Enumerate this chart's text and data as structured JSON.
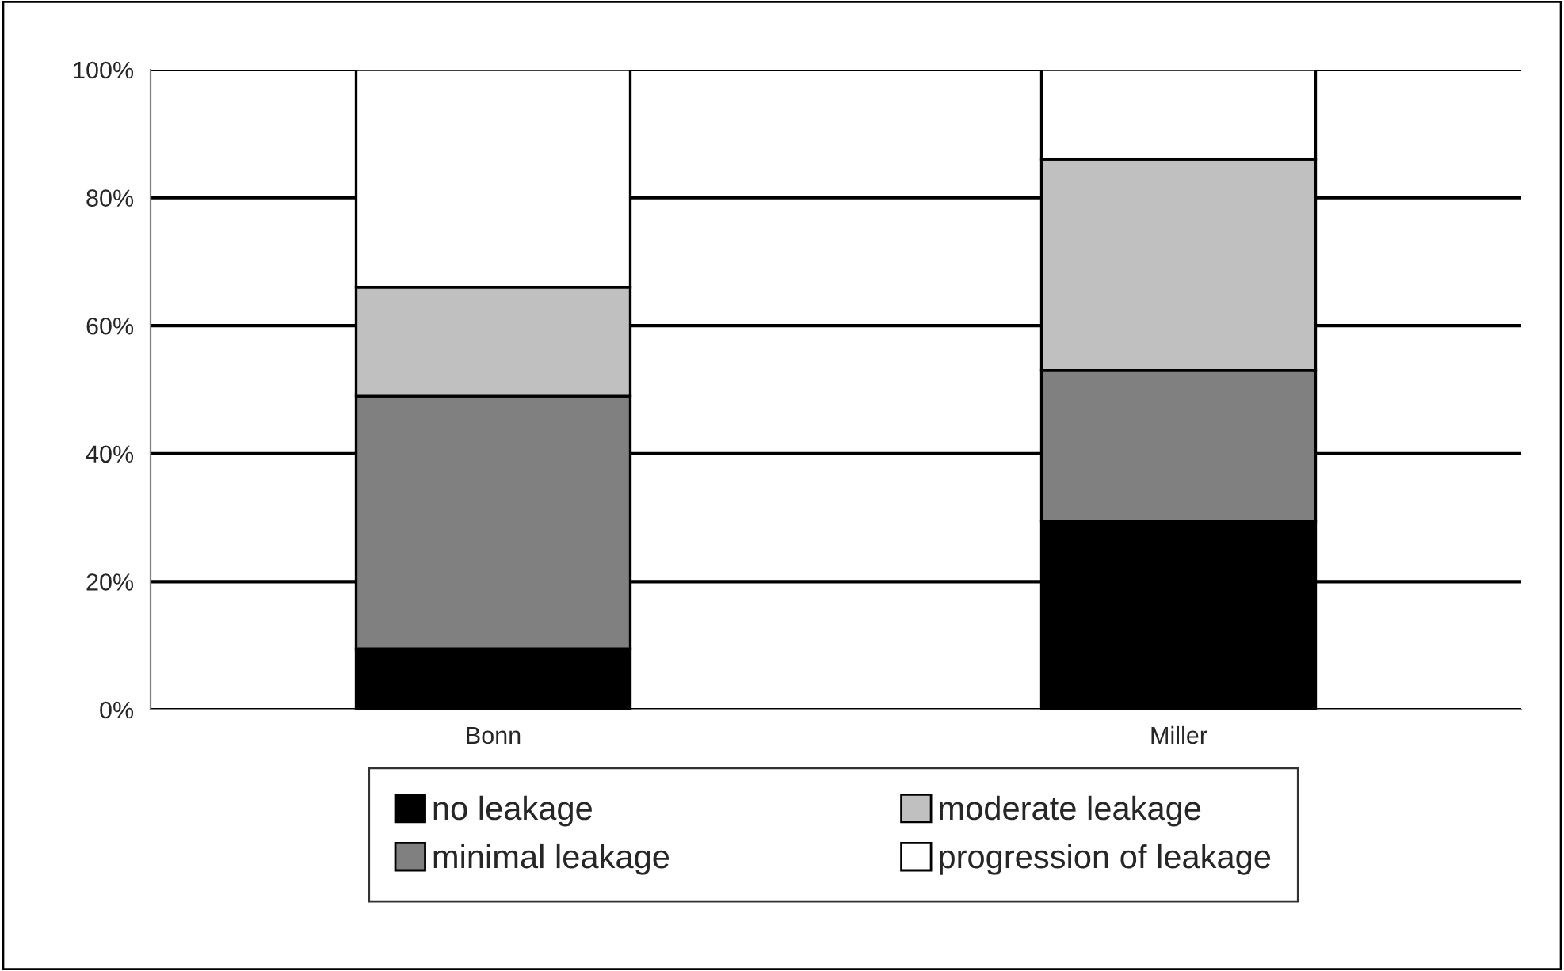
{
  "chart_data": {
    "type": "bar",
    "stacked": true,
    "categories": [
      "Bonn",
      "Miller"
    ],
    "series": [
      {
        "name": "no leakage",
        "color": "#000000",
        "values": [
          9.5,
          29.5
        ]
      },
      {
        "name": "minimal leakage",
        "color": "#808080",
        "values": [
          39.5,
          23.5
        ]
      },
      {
        "name": "moderate leakage",
        "color": "#c0c0c0",
        "values": [
          17,
          33
        ]
      },
      {
        "name": "progression of leakage",
        "color": "#ffffff",
        "values": [
          34,
          14
        ]
      }
    ],
    "ylim": [
      0,
      100
    ],
    "yticks": [
      {
        "value": 0,
        "label": "0%"
      },
      {
        "value": 20,
        "label": "20%"
      },
      {
        "value": 40,
        "label": "40%"
      },
      {
        "value": 60,
        "label": "60%"
      },
      {
        "value": 80,
        "label": "80%"
      },
      {
        "value": 100,
        "label": "100%"
      }
    ],
    "grid": "y",
    "legend": "bottom"
  }
}
